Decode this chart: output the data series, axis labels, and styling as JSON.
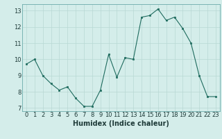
{
  "x": [
    0,
    1,
    2,
    3,
    4,
    5,
    6,
    7,
    8,
    9,
    10,
    11,
    12,
    13,
    14,
    15,
    16,
    17,
    18,
    19,
    20,
    21,
    22,
    23
  ],
  "y": [
    9.7,
    10.0,
    9.0,
    8.5,
    8.1,
    8.3,
    7.6,
    7.1,
    7.1,
    8.1,
    10.3,
    8.9,
    10.1,
    10.0,
    12.6,
    12.7,
    13.1,
    12.4,
    12.6,
    11.9,
    11.0,
    9.0,
    7.7,
    7.7
  ],
  "xlabel": "Humidex (Indice chaleur)",
  "line_color": "#1e6b5e",
  "marker_color": "#1e6b5e",
  "bg_color": "#d4edea",
  "grid_color": "#b8d8d4",
  "ylim": [
    6.8,
    13.4
  ],
  "xlim": [
    -0.5,
    23.5
  ],
  "yticks": [
    7,
    8,
    9,
    10,
    11,
    12,
    13
  ],
  "xticks": [
    0,
    1,
    2,
    3,
    4,
    5,
    6,
    7,
    8,
    9,
    10,
    11,
    12,
    13,
    14,
    15,
    16,
    17,
    18,
    19,
    20,
    21,
    22,
    23
  ],
  "tick_fontsize": 6,
  "xlabel_fontsize": 7
}
